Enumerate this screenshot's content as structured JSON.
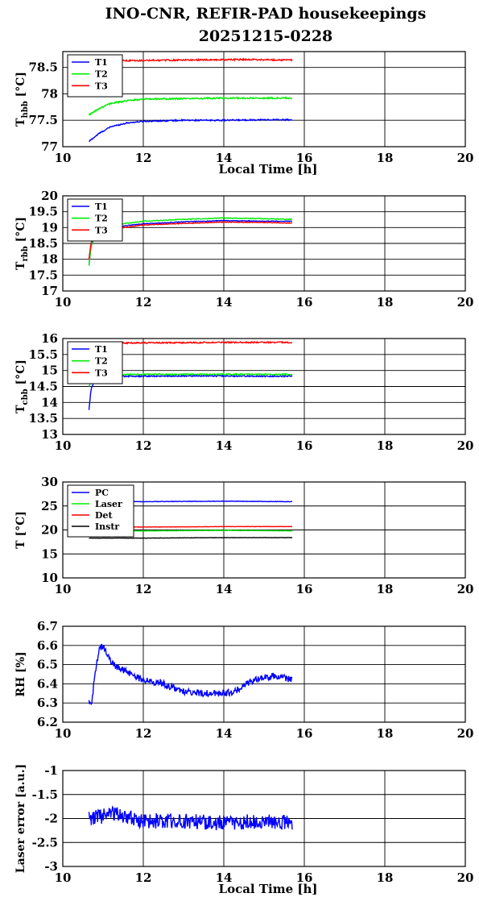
{
  "title": {
    "line1": "INO-CNR, REFIR-PAD housekeepings",
    "line2": "20251215-0228"
  },
  "chart_data": [
    {
      "type": "line",
      "ylabel": {
        "main": "T",
        "sub": "hbb",
        "unit": " [°C]"
      },
      "xlabel": "Local Time [h]",
      "xlim": [
        10,
        20
      ],
      "ylim": [
        77,
        78.8
      ],
      "xticks": [
        10,
        12,
        14,
        16,
        18,
        20
      ],
      "yticks": [
        77,
        77.5,
        78,
        78.5
      ],
      "ytick_labels": [
        "77",
        "77.5",
        "78",
        "78.5"
      ],
      "grid": true,
      "legend": "top-left",
      "series": [
        {
          "name": "T1",
          "color": "#0000ff",
          "noise": 0.012,
          "points": [
            [
              10.65,
              77.1
            ],
            [
              10.9,
              77.25
            ],
            [
              11.2,
              77.38
            ],
            [
              11.6,
              77.45
            ],
            [
              12.0,
              77.48
            ],
            [
              13,
              77.5
            ],
            [
              14,
              77.5
            ],
            [
              15,
              77.51
            ],
            [
              15.7,
              77.51
            ]
          ]
        },
        {
          "name": "T2",
          "color": "#00ee00",
          "noise": 0.014,
          "points": [
            [
              10.65,
              77.6
            ],
            [
              10.9,
              77.72
            ],
            [
              11.2,
              77.82
            ],
            [
              11.6,
              77.87
            ],
            [
              12.0,
              77.9
            ],
            [
              13,
              77.91
            ],
            [
              14,
              77.92
            ],
            [
              15,
              77.92
            ],
            [
              15.7,
              77.92
            ]
          ]
        },
        {
          "name": "T3",
          "color": "#ff0000",
          "noise": 0.014,
          "points": [
            [
              10.65,
              78.64
            ],
            [
              11.5,
              78.63
            ],
            [
              13,
              78.64
            ],
            [
              14.5,
              78.65
            ],
            [
              15.7,
              78.64
            ]
          ]
        }
      ]
    },
    {
      "type": "line",
      "ylabel": {
        "main": "T",
        "sub": "rbb",
        "unit": " [°C]"
      },
      "xlim": [
        10,
        20
      ],
      "ylim": [
        17,
        20
      ],
      "xticks": [
        10,
        12,
        14,
        16,
        18,
        20
      ],
      "yticks": [
        17,
        17.5,
        18,
        18.5,
        19,
        19.5,
        20
      ],
      "ytick_labels": [
        "17",
        "17.5",
        "18",
        "18.5",
        "19",
        "19.5",
        "20"
      ],
      "grid": true,
      "legend": "top-left",
      "series": [
        {
          "name": "T1",
          "color": "#0000ff",
          "noise": 0.01,
          "points": [
            [
              10.65,
              17.8
            ],
            [
              10.7,
              18.4
            ],
            [
              10.8,
              18.75
            ],
            [
              11.0,
              18.9
            ],
            [
              11.5,
              19.05
            ],
            [
              12,
              19.12
            ],
            [
              13,
              19.18
            ],
            [
              14,
              19.22
            ],
            [
              15,
              19.2
            ],
            [
              15.7,
              19.2
            ]
          ]
        },
        {
          "name": "T2",
          "color": "#00ee00",
          "noise": 0.012,
          "points": [
            [
              10.65,
              17.8
            ],
            [
              10.7,
              18.4
            ],
            [
              10.8,
              18.8
            ],
            [
              11.0,
              18.95
            ],
            [
              11.5,
              19.12
            ],
            [
              12,
              19.2
            ],
            [
              13,
              19.26
            ],
            [
              14,
              19.3
            ],
            [
              15,
              19.28
            ],
            [
              15.7,
              19.26
            ]
          ]
        },
        {
          "name": "T3",
          "color": "#ff0000",
          "noise": 0.01,
          "points": [
            [
              10.65,
              18.0
            ],
            [
              10.7,
              18.5
            ],
            [
              10.8,
              18.78
            ],
            [
              11.0,
              18.9
            ],
            [
              11.5,
              19.0
            ],
            [
              12,
              19.08
            ],
            [
              13,
              19.13
            ],
            [
              14,
              19.17
            ],
            [
              15,
              19.16
            ],
            [
              15.7,
              19.14
            ]
          ]
        }
      ]
    },
    {
      "type": "line",
      "ylabel": {
        "main": "T",
        "sub": "cbb",
        "unit": " [°C]"
      },
      "xlim": [
        10,
        20
      ],
      "ylim": [
        13,
        16
      ],
      "xticks": [
        10,
        12,
        14,
        16,
        18,
        20
      ],
      "yticks": [
        13,
        13.5,
        14,
        14.5,
        15,
        15.5,
        16
      ],
      "ytick_labels": [
        "13",
        "13.5",
        "14",
        "14.5",
        "15",
        "15.5",
        "16"
      ],
      "grid": true,
      "legend": "top-left",
      "series": [
        {
          "name": "T1",
          "color": "#0000ff",
          "noise": 0.02,
          "points": [
            [
              10.65,
              13.75
            ],
            [
              10.7,
              14.4
            ],
            [
              10.8,
              14.75
            ],
            [
              11.0,
              14.82
            ],
            [
              12,
              14.82
            ],
            [
              13,
              14.83
            ],
            [
              14,
              14.83
            ],
            [
              15,
              14.82
            ],
            [
              15.7,
              14.82
            ]
          ]
        },
        {
          "name": "T2",
          "color": "#00ee00",
          "noise": 0.02,
          "points": [
            [
              10.65,
              14.5
            ],
            [
              10.75,
              14.8
            ],
            [
              11.0,
              14.87
            ],
            [
              12,
              14.88
            ],
            [
              13,
              14.88
            ],
            [
              14,
              14.88
            ],
            [
              15,
              14.88
            ],
            [
              15.7,
              14.88
            ]
          ]
        },
        {
          "name": "T3",
          "color": "#ff0000",
          "noise": 0.02,
          "points": [
            [
              10.65,
              15.85
            ],
            [
              11.5,
              15.86
            ],
            [
              13,
              15.87
            ],
            [
              14.5,
              15.88
            ],
            [
              15.7,
              15.88
            ]
          ]
        }
      ]
    },
    {
      "type": "line",
      "ylabel": {
        "main": "T [°C]",
        "sub": "",
        "unit": ""
      },
      "xlim": [
        10,
        20
      ],
      "ylim": [
        10,
        30
      ],
      "xticks": [
        10,
        12,
        14,
        16,
        18,
        20
      ],
      "yticks": [
        10,
        15,
        20,
        25,
        30
      ],
      "ytick_labels": [
        "10",
        "15",
        "20",
        "25",
        "30"
      ],
      "grid": true,
      "legend": "top-left",
      "series": [
        {
          "name": "PC",
          "color": "#0000ff",
          "noise": 0.05,
          "points": [
            [
              10.65,
              25.9
            ],
            [
              12,
              25.9
            ],
            [
              14,
              26.0
            ],
            [
              15.7,
              25.9
            ]
          ]
        },
        {
          "name": "Laser",
          "color": "#00ee00",
          "noise": 0.05,
          "points": [
            [
              10.65,
              19.8
            ],
            [
              12,
              19.8
            ],
            [
              14,
              19.9
            ],
            [
              15.7,
              19.8
            ]
          ]
        },
        {
          "name": "Det",
          "color": "#ff0000",
          "noise": 0.03,
          "points": [
            [
              10.65,
              20.6
            ],
            [
              12,
              20.6
            ],
            [
              14,
              20.7
            ],
            [
              15.7,
              20.7
            ]
          ]
        },
        {
          "name": "Instr",
          "color": "#000000",
          "noise": 0.03,
          "points": [
            [
              10.65,
              18.3
            ],
            [
              12,
              18.3
            ],
            [
              14,
              18.4
            ],
            [
              15.7,
              18.4
            ]
          ]
        }
      ]
    },
    {
      "type": "line",
      "ylabel": {
        "main": "RH [%]",
        "sub": "",
        "unit": ""
      },
      "xlim": [
        10,
        20
      ],
      "ylim": [
        6.2,
        6.7
      ],
      "xticks": [
        10,
        12,
        14,
        16,
        18,
        20
      ],
      "yticks": [
        6.2,
        6.3,
        6.4,
        6.5,
        6.6,
        6.7
      ],
      "ytick_labels": [
        "6.2",
        "6.3",
        "6.4",
        "6.5",
        "6.6",
        "6.7"
      ],
      "grid": true,
      "legend": "none",
      "series": [
        {
          "name": "",
          "color": "#0000ff",
          "noise": 0.018,
          "points": [
            [
              10.65,
              6.3
            ],
            [
              10.72,
              6.31
            ],
            [
              10.8,
              6.45
            ],
            [
              10.9,
              6.58
            ],
            [
              11.0,
              6.6
            ],
            [
              11.2,
              6.52
            ],
            [
              11.4,
              6.48
            ],
            [
              11.7,
              6.45
            ],
            [
              12,
              6.42
            ],
            [
              12.5,
              6.4
            ],
            [
              13,
              6.36
            ],
            [
              13.5,
              6.35
            ],
            [
              14,
              6.35
            ],
            [
              14.3,
              6.36
            ],
            [
              14.5,
              6.4
            ],
            [
              14.8,
              6.42
            ],
            [
              15.2,
              6.44
            ],
            [
              15.5,
              6.43
            ],
            [
              15.7,
              6.42
            ]
          ]
        }
      ]
    },
    {
      "type": "line",
      "ylabel": {
        "main": "Laser error [a.u.]",
        "sub": "",
        "unit": ""
      },
      "xlabel": "Local Time [h]",
      "xlim": [
        10,
        20
      ],
      "ylim": [
        -3,
        -1
      ],
      "xticks": [
        10,
        12,
        14,
        16,
        18,
        20
      ],
      "yticks": [
        -3,
        -2.5,
        -2,
        -1.5,
        -1
      ],
      "ytick_labels": [
        "-3",
        "-2.5",
        "-2",
        "-1.5",
        "-1"
      ],
      "grid": true,
      "legend": "none",
      "series": [
        {
          "name": "",
          "color": "#0000ff",
          "noise": 0.16,
          "points": [
            [
              10.65,
              -2.0
            ],
            [
              11.3,
              -1.9
            ],
            [
              12,
              -2.05
            ],
            [
              13,
              -2.05
            ],
            [
              14,
              -2.1
            ],
            [
              15,
              -2.05
            ],
            [
              15.7,
              -2.1
            ]
          ]
        }
      ]
    }
  ]
}
